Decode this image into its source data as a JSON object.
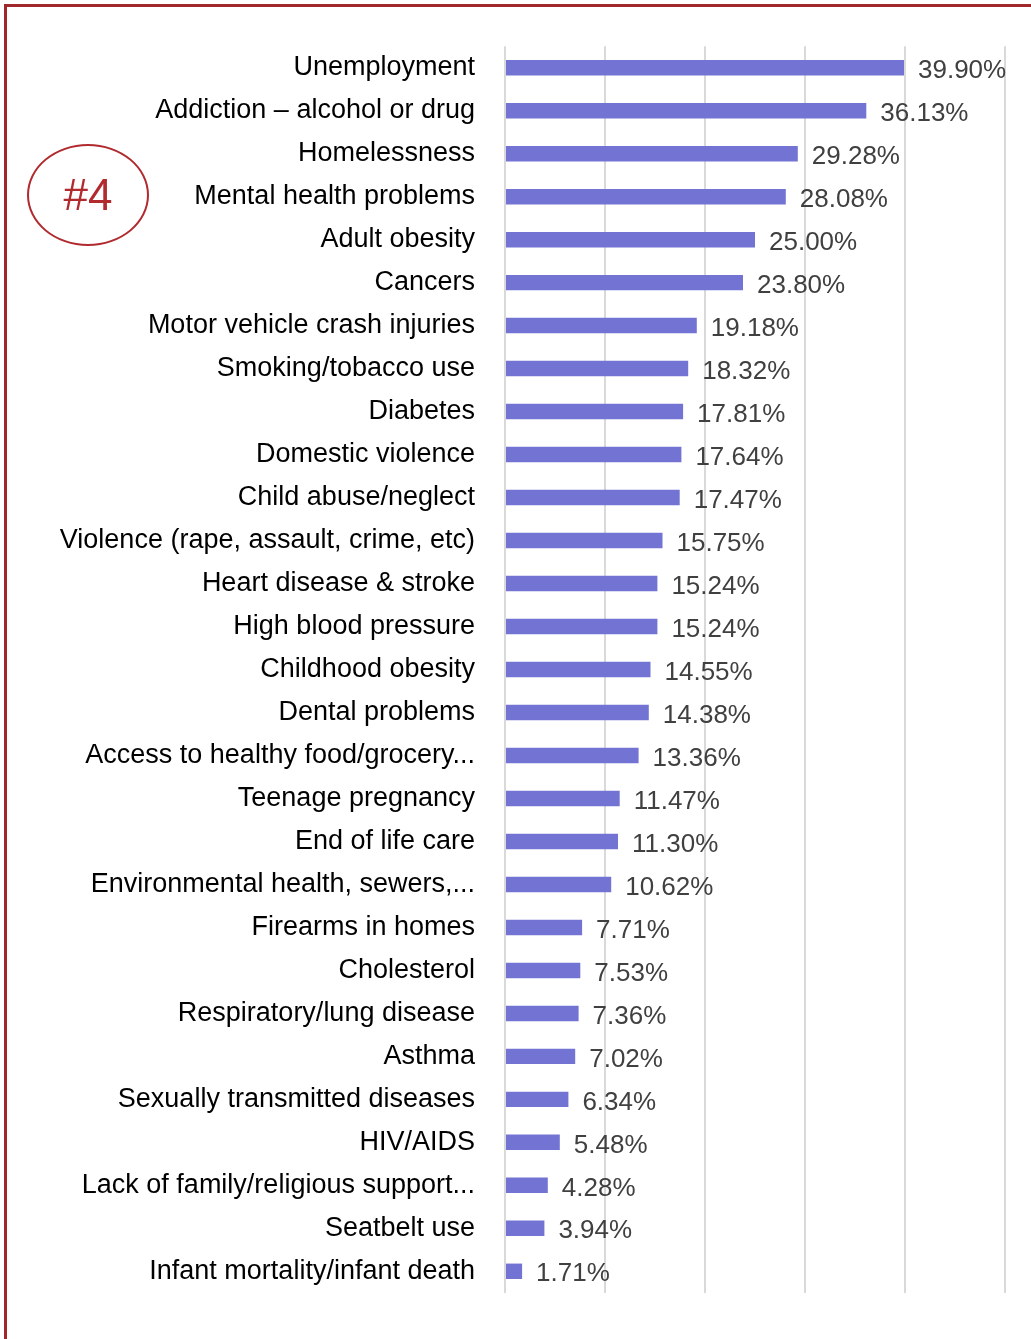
{
  "chart_data": {
    "type": "bar",
    "orientation": "horizontal",
    "categories": [
      "Unemployment",
      "Addiction – alcohol or drug",
      "Homelessness",
      "Mental health problems",
      "Adult obesity",
      "Cancers",
      "Motor vehicle crash injuries",
      "Smoking/tobacco use",
      "Diabetes",
      "Domestic violence",
      "Child abuse/neglect",
      "Violence (rape, assault, crime, etc)",
      "Heart disease & stroke",
      "High blood pressure",
      "Childhood obesity",
      "Dental problems",
      "Access to healthy food/grocery...",
      "Teenage pregnancy",
      "End of life care",
      "Environmental health, sewers,...",
      "Firearms in homes",
      "Cholesterol",
      "Respiratory/lung disease",
      "Asthma",
      "Sexually transmitted diseases",
      "HIV/AIDS",
      "Lack of family/religious support...",
      "Seatbelt use",
      "Infant mortality/infant death"
    ],
    "values": [
      39.9,
      36.13,
      29.28,
      28.08,
      25.0,
      23.8,
      19.18,
      18.32,
      17.81,
      17.64,
      17.47,
      15.75,
      15.24,
      15.24,
      14.55,
      14.38,
      13.36,
      11.47,
      11.3,
      10.62,
      7.71,
      7.53,
      7.36,
      7.02,
      6.34,
      5.48,
      4.28,
      3.94,
      1.71
    ],
    "value_labels": [
      "39.90%",
      "36.13%",
      "29.28%",
      "28.08%",
      "25.00%",
      "23.80%",
      "19.18%",
      "18.32%",
      "17.81%",
      "17.64%",
      "17.47%",
      "15.75%",
      "15.24%",
      "15.24%",
      "14.55%",
      "14.38%",
      "13.36%",
      "11.47%",
      "11.30%",
      "10.62%",
      "7.71%",
      "7.53%",
      "7.36%",
      "7.02%",
      "6.34%",
      "5.48%",
      "4.28%",
      "3.94%",
      "1.71%"
    ],
    "color": "#7373d4",
    "xlim": [
      0,
      50
    ],
    "xticks": [
      {
        "value": 0,
        "label": null
      },
      {
        "value": 10,
        "label": null
      },
      {
        "value": 20,
        "label": null
      },
      {
        "value": 30,
        "label": null
      },
      {
        "value": 40,
        "label": null
      },
      {
        "value": 50,
        "label": null
      }
    ],
    "grid": "x",
    "tick_labels": "y",
    "legend": false,
    "annotations": [
      "#4"
    ]
  }
}
